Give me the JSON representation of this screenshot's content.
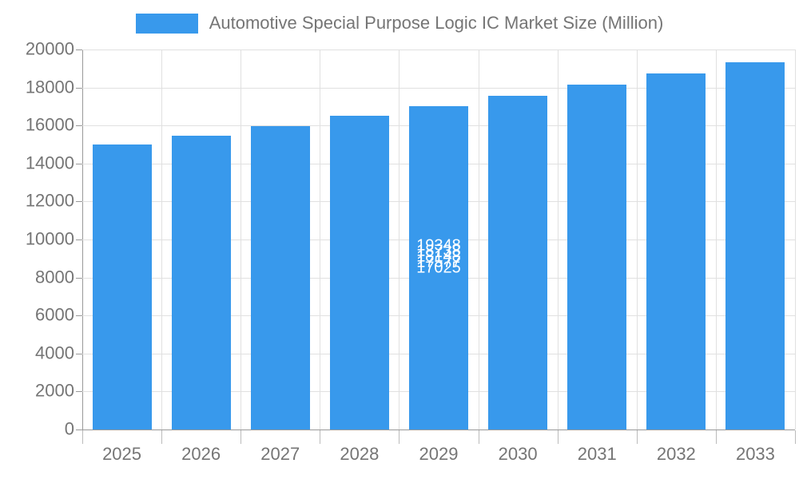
{
  "legend": {
    "label": "Automotive Special Purpose Logic IC Market Size (Million)"
  },
  "chart_data": {
    "type": "bar",
    "title": "Automotive Special Purpose Logic IC Market Size (Million)",
    "series_name": "Automotive Special Purpose Logic IC Market Size (Million)",
    "categories": [
      "2025",
      "2026",
      "2027",
      "2028",
      "2029",
      "2030",
      "2031",
      "2032",
      "2033"
    ],
    "values": [
      15000,
      15480,
      15977,
      16492,
      17025,
      17577,
      18148,
      18738,
      19348
    ],
    "value_labels": [
      "15000",
      "15480",
      "15977",
      "16492",
      "17025",
      "17577",
      "18148",
      "18738",
      "19348"
    ],
    "xlabel": "",
    "ylabel": "",
    "ylim": [
      0,
      20000
    ],
    "ytick_step": 2000,
    "ytick_labels": [
      "0",
      "2000",
      "4000",
      "6000",
      "8000",
      "10000",
      "12000",
      "14000",
      "16000",
      "18000",
      "20000"
    ],
    "grid": true,
    "legend_position": "top-center",
    "bar_color": "#3899EC",
    "value_label_color": "#FFFFFF",
    "axis_text_color": "#757575",
    "grid_color": "#E0E0E0",
    "axis_line_color": "#999999"
  }
}
